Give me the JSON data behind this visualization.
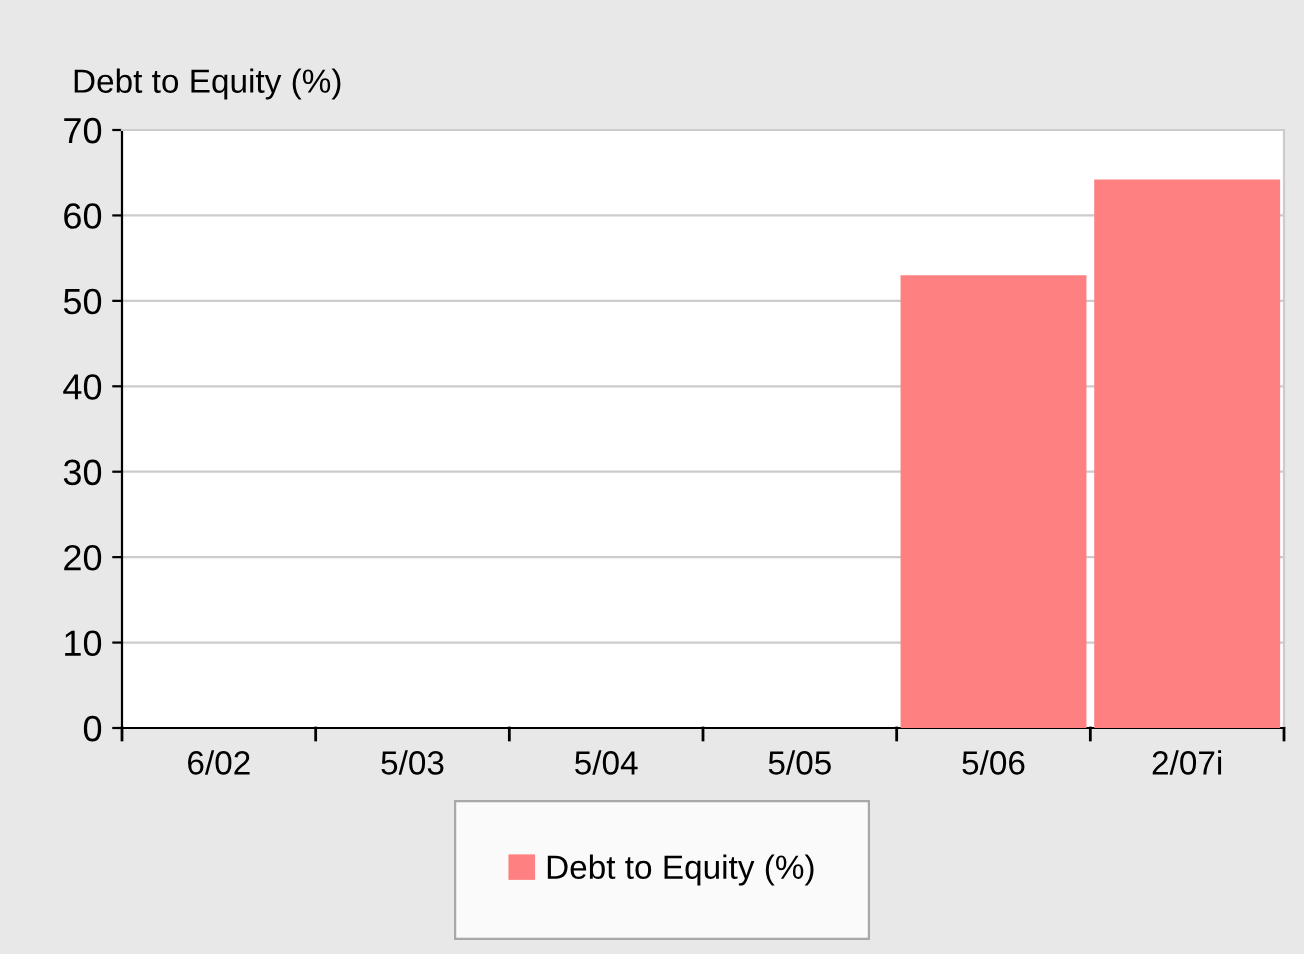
{
  "chart_data": {
    "type": "bar",
    "ylabel": "Debt to Equity (%)",
    "categories": [
      "6/02",
      "5/03",
      "5/04",
      "5/05",
      "5/06",
      "2/07i"
    ],
    "series": [
      {
        "name": "Debt to Equity (%)",
        "color": "#ff8080",
        "values": [
          null,
          null,
          null,
          null,
          53,
          64.2
        ]
      }
    ],
    "ylim": [
      0,
      70
    ],
    "yticks": [
      0,
      10,
      20,
      30,
      40,
      50,
      60,
      70
    ],
    "grid": "y",
    "legend": "bottom"
  }
}
